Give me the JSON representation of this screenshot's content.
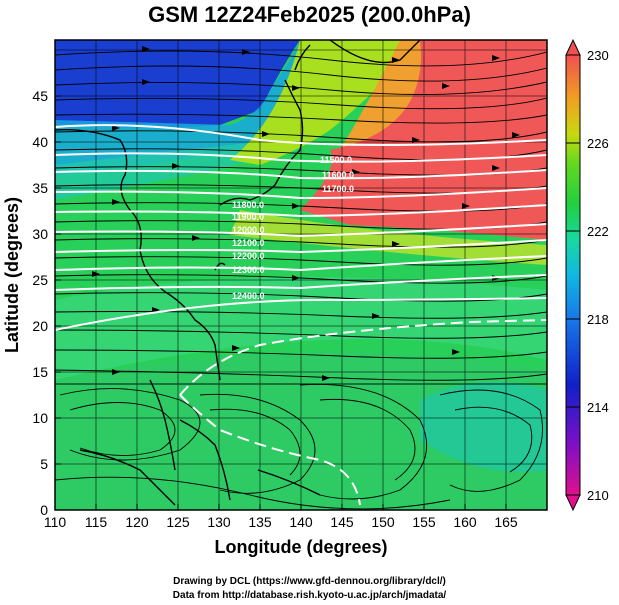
{
  "title": "GSM 12Z24Feb2025 (200.0hPa)",
  "x_axis_label": "Longitude (degrees)",
  "y_axis_label": "Latitude  (degrees)",
  "x_ticks": [
    "110",
    "115",
    "120",
    "125",
    "130",
    "135",
    "140",
    "145",
    "150",
    "155",
    "160",
    "165"
  ],
  "y_ticks": [
    "0",
    "5",
    "10",
    "15",
    "20",
    "25",
    "30",
    "35",
    "40",
    "45"
  ],
  "colorbar": {
    "ticks": [
      "230",
      "226",
      "222",
      "218",
      "214",
      "210"
    ],
    "stops": [
      "#e0108c",
      "#7a10c8",
      "#1020c8",
      "#1878e8",
      "#10b8e0",
      "#18d8a0",
      "#20d040",
      "#60d820",
      "#c8d810",
      "#f0a020",
      "#f05050"
    ]
  },
  "contours": {
    "labels": [
      "11500.0",
      "11600.0",
      "11700.0",
      "11800.0",
      "11900.0",
      "12000.0",
      "12100.0",
      "12200.0",
      "12300.0",
      "12400.0"
    ],
    "values_m": [
      11500,
      11600,
      11700,
      11800,
      11900,
      12000,
      12100,
      12200,
      12300,
      12400
    ],
    "color": "#ffffff"
  },
  "footer": {
    "line1": "Drawing by DCL (https://www.gfd-dennou.org/library/dcl/)",
    "line2": "Data from http://database.rish.kyoto-u.ac.jp/arch/jmadata/"
  }
}
